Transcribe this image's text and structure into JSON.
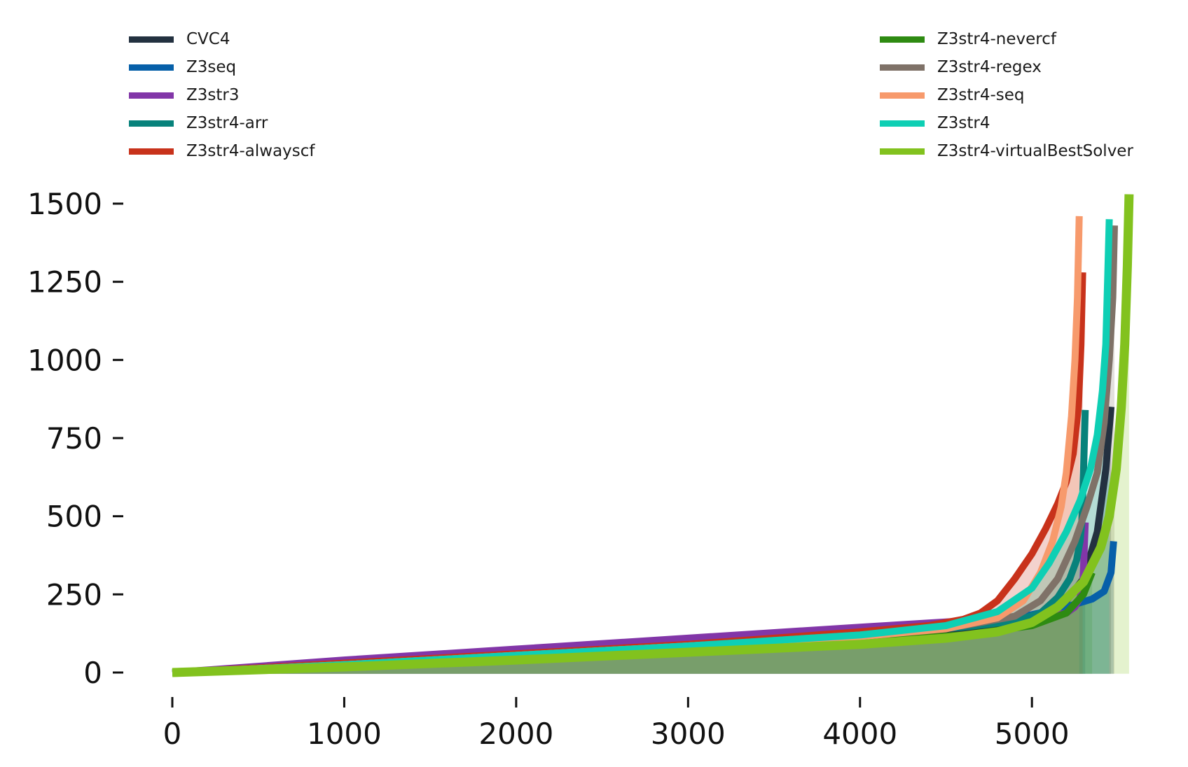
{
  "chart_data": {
    "type": "area",
    "title": "",
    "xlabel": "",
    "ylabel": "",
    "xlim": [
      -300,
      5700
    ],
    "ylim": [
      -60,
      1560
    ],
    "xticks": [
      "0",
      "1000",
      "2000",
      "3000",
      "4000",
      "5000"
    ],
    "xtick_values": [
      0,
      1000,
      2000,
      3000,
      4000,
      5000
    ],
    "yticks": [
      "0",
      "250",
      "500",
      "750",
      "1000",
      "1250",
      "1500"
    ],
    "ytick_values": [
      0,
      250,
      500,
      750,
      1000,
      1250,
      1500
    ],
    "grid": false,
    "legend_placement": "top, two columns",
    "series": [
      {
        "name": "CVC4",
        "color": "#233140",
        "x": [
          0,
          1000,
          2000,
          3000,
          4000,
          4600,
          4900,
          5100,
          5200,
          5300,
          5380,
          5430,
          5460
        ],
        "y": [
          0,
          20,
          45,
          75,
          110,
          140,
          160,
          190,
          230,
          300,
          450,
          650,
          850
        ]
      },
      {
        "name": "Z3seq",
        "color": "#0660a9",
        "x": [
          0,
          1000,
          2000,
          3000,
          4000,
          4600,
          5000,
          5200,
          5350,
          5420,
          5460,
          5475
        ],
        "y": [
          0,
          22,
          50,
          85,
          125,
          155,
          185,
          210,
          235,
          260,
          320,
          420
        ]
      },
      {
        "name": "Z3str3",
        "color": "#8236a8",
        "x": [
          0,
          1000,
          2000,
          3000,
          4000,
          4600,
          4900,
          5100,
          5200,
          5250,
          5280,
          5295,
          5300,
          5305,
          5310
        ],
        "y": [
          0,
          40,
          75,
          110,
          145,
          165,
          175,
          180,
          190,
          210,
          240,
          280,
          330,
          410,
          480
        ]
      },
      {
        "name": "Z3str4-arr",
        "color": "#07827b",
        "x": [
          0,
          1000,
          2000,
          3000,
          4000,
          4600,
          4900,
          5050,
          5150,
          5220,
          5260,
          5280,
          5290,
          5300,
          5310
        ],
        "y": [
          0,
          25,
          55,
          85,
          120,
          145,
          165,
          190,
          240,
          300,
          360,
          420,
          480,
          640,
          840
        ]
      },
      {
        "name": "Z3str4-alwayscf",
        "color": "#c8321b",
        "x": [
          0,
          1000,
          2000,
          3000,
          4000,
          4400,
          4600,
          4700,
          4800,
          4900,
          5000,
          5080,
          5150,
          5200,
          5240,
          5270,
          5285,
          5295
        ],
        "y": [
          0,
          30,
          60,
          90,
          130,
          150,
          170,
          190,
          230,
          300,
          380,
          460,
          540,
          610,
          700,
          850,
          1050,
          1280
        ]
      },
      {
        "name": "Z3str4-nevercf",
        "color": "#2e8b12",
        "x": [
          0,
          1000,
          2000,
          3000,
          4000,
          4600,
          5000,
          5200,
          5300,
          5350
        ],
        "y": [
          0,
          20,
          45,
          70,
          100,
          120,
          150,
          190,
          250,
          320
        ]
      },
      {
        "name": "Z3str4-regex",
        "color": "#7f7268",
        "x": [
          0,
          1000,
          2000,
          3000,
          4000,
          4600,
          4900,
          5050,
          5150,
          5250,
          5320,
          5380,
          5420,
          5450,
          5470,
          5480
        ],
        "y": [
          0,
          25,
          55,
          85,
          120,
          150,
          180,
          230,
          300,
          420,
          530,
          640,
          800,
          1000,
          1200,
          1430
        ]
      },
      {
        "name": "Z3str4-seq",
        "color": "#f79a6c",
        "x": [
          0,
          1000,
          2000,
          3000,
          4000,
          4500,
          4800,
          4950,
          5050,
          5120,
          5170,
          5200,
          5230,
          5250,
          5265,
          5275
        ],
        "y": [
          0,
          25,
          55,
          85,
          115,
          140,
          175,
          230,
          320,
          420,
          530,
          640,
          820,
          1000,
          1200,
          1460
        ]
      },
      {
        "name": "Z3str4",
        "color": "#0ecfb4",
        "x": [
          0,
          1000,
          2000,
          3000,
          4000,
          4500,
          4800,
          5000,
          5100,
          5200,
          5280,
          5340,
          5380,
          5410,
          5430,
          5440,
          5450
        ],
        "y": [
          0,
          25,
          55,
          85,
          120,
          150,
          195,
          270,
          350,
          450,
          550,
          650,
          760,
          900,
          1050,
          1250,
          1450
        ]
      },
      {
        "name": "Z3str4-virtualBestSolver",
        "color": "#82c21e",
        "x": [
          0,
          1000,
          2000,
          3000,
          4000,
          4500,
          4800,
          5000,
          5150,
          5300,
          5400,
          5450,
          5490,
          5520,
          5540,
          5555,
          5565
        ],
        "y": [
          0,
          18,
          40,
          65,
          90,
          110,
          130,
          160,
          210,
          290,
          400,
          500,
          650,
          850,
          1050,
          1300,
          1530
        ]
      }
    ]
  }
}
